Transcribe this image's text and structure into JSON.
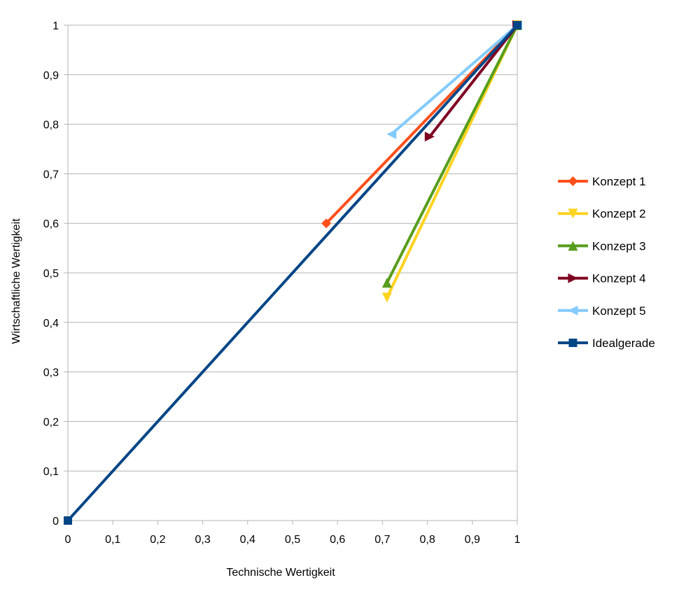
{
  "chart_data": {
    "type": "scatter",
    "title": "",
    "xlabel": "Technische Wertigkeit",
    "ylabel": "Wirtschaftliche Wertigkeit",
    "xlim": [
      0,
      1
    ],
    "ylim": [
      0,
      1
    ],
    "xticks": [
      "0",
      "0,1",
      "0,2",
      "0,3",
      "0,4",
      "0,5",
      "0,6",
      "0,7",
      "0,8",
      "0,9",
      "1"
    ],
    "yticks": [
      "0",
      "0,1",
      "0,2",
      "0,3",
      "0,4",
      "0,5",
      "0,6",
      "0,7",
      "0,8",
      "0,9",
      "1"
    ],
    "grid": "horizontal",
    "legend": "right",
    "series": [
      {
        "name": "Konzept 1",
        "color": "#ff4f1c",
        "marker": "diamond",
        "points": [
          [
            0.575,
            0.6
          ],
          [
            1,
            1
          ]
        ]
      },
      {
        "name": "Konzept 2",
        "color": "#ffd320",
        "marker": "triangle-down",
        "points": [
          [
            0.71,
            0.45
          ],
          [
            1,
            1
          ]
        ]
      },
      {
        "name": "Konzept 3",
        "color": "#579d1c",
        "marker": "triangle-up",
        "points": [
          [
            0.71,
            0.48
          ],
          [
            1,
            1
          ]
        ]
      },
      {
        "name": "Konzept 4",
        "color": "#7e0021",
        "marker": "triangle-right",
        "points": [
          [
            0.805,
            0.775
          ],
          [
            1,
            1
          ]
        ]
      },
      {
        "name": "Konzept 5",
        "color": "#83caff",
        "marker": "triangle-left",
        "points": [
          [
            0.72,
            0.78
          ],
          [
            1,
            1
          ]
        ]
      },
      {
        "name": "Idealgerade",
        "color": "#004586",
        "marker": "square",
        "points": [
          [
            0,
            0
          ],
          [
            1,
            1
          ]
        ]
      }
    ]
  }
}
